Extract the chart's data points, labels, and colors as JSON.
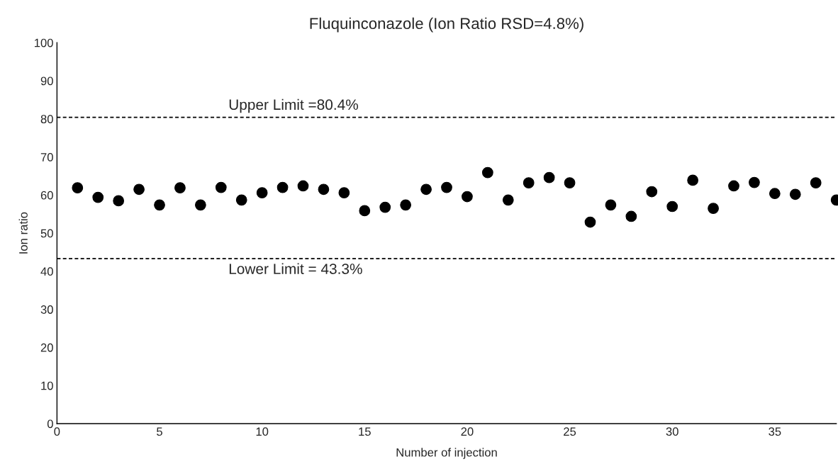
{
  "chart_data": {
    "type": "scatter",
    "title": "Fluquinconazole (Ion Ratio RSD=4.8%)",
    "xlabel": "Number of injection",
    "ylabel": "Ion ratio",
    "x": [
      1,
      2,
      3,
      4,
      5,
      6,
      7,
      8,
      9,
      10,
      11,
      12,
      13,
      14,
      15,
      16,
      17,
      18,
      19,
      20,
      21,
      22,
      23,
      24,
      25,
      26,
      27,
      28,
      29,
      30,
      31,
      32,
      33,
      34,
      35,
      36,
      37,
      38
    ],
    "series": [
      {
        "color": "#000000",
        "values": [
          61.9,
          59.4,
          58.5,
          61.5,
          57.4,
          61.9,
          57.4,
          62.0,
          58.7,
          60.6,
          62.0,
          62.4,
          61.5,
          60.6,
          55.9,
          56.8,
          57.4,
          61.5,
          62.0,
          59.6,
          65.9,
          58.7,
          63.2,
          64.6,
          63.2,
          52.9,
          57.4,
          54.4,
          60.9,
          57.0,
          63.9,
          56.5,
          62.4,
          63.3,
          60.4,
          60.2,
          63.2,
          58.7
        ]
      }
    ],
    "xlim": [
      0,
      38
    ],
    "xticks": [
      0,
      5,
      10,
      15,
      20,
      25,
      30,
      35
    ],
    "ylim": [
      0,
      100
    ],
    "yticks": [
      0,
      10,
      20,
      30,
      40,
      50,
      60,
      70,
      80,
      90,
      100
    ],
    "ref_lines": [
      {
        "axis": "y",
        "value": 80.4,
        "label": "Upper Limit =80.4%",
        "color": "#000000",
        "line_style": "dashed"
      },
      {
        "axis": "y",
        "value": 43.3,
        "label": "Lower Limit = 43.3%",
        "color": "#000000",
        "line_style": "dashed"
      }
    ],
    "grid": false,
    "marker": "circle",
    "legend": false
  }
}
